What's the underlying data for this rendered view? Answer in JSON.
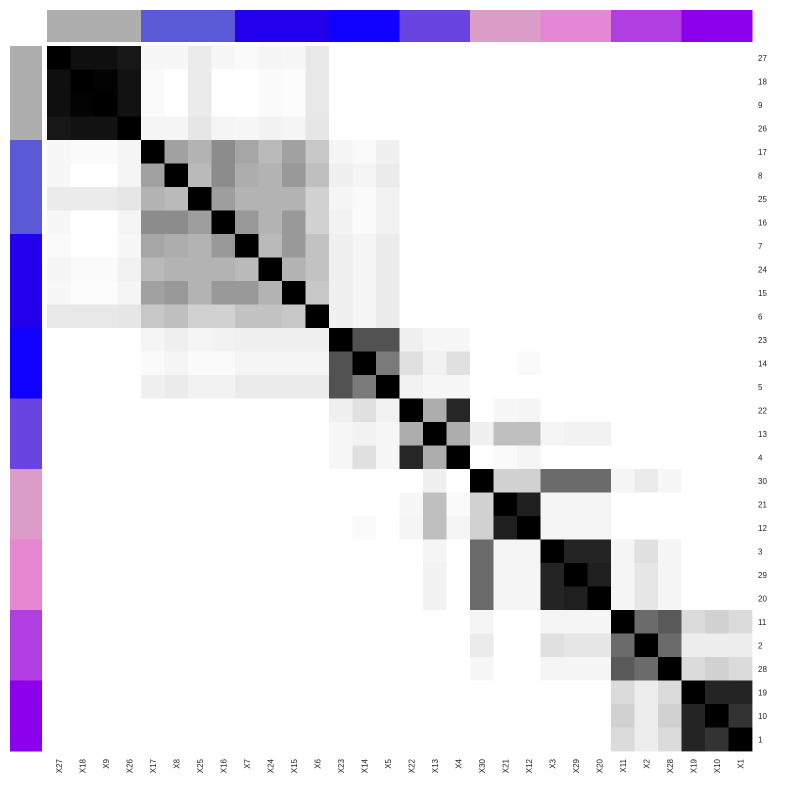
{
  "chart_data": {
    "type": "heatmap",
    "title": "",
    "xlabel": "",
    "ylabel": "",
    "legend": "none",
    "scale": "white-to-black (higher = darker)",
    "value_range": [
      0,
      1
    ],
    "col_labels": [
      "X27",
      "X18",
      "X9",
      "X26",
      "X17",
      "X8",
      "X25",
      "X16",
      "X7",
      "X24",
      "X15",
      "X6",
      "X23",
      "X14",
      "X5",
      "X22",
      "X13",
      "X4",
      "X30",
      "X21",
      "X12",
      "X3",
      "X29",
      "X20",
      "X11",
      "X2",
      "X28",
      "X19",
      "X10",
      "X1"
    ],
    "row_labels": [
      "27",
      "18",
      "9",
      "26",
      "17",
      "8",
      "25",
      "16",
      "7",
      "24",
      "15",
      "6",
      "23",
      "14",
      "5",
      "22",
      "13",
      "4",
      "30",
      "21",
      "12",
      "3",
      "29",
      "20",
      "11",
      "2",
      "28",
      "19",
      "10",
      "1"
    ],
    "group_sizes": [
      4,
      4,
      4,
      3,
      3,
      3,
      3,
      3,
      3
    ],
    "group_colors": [
      "#aeaeae",
      "#5a5ad6",
      "#2200ee",
      "#0f00ff",
      "#6a44e0",
      "#dc9cc8",
      "#e488d4",
      "#b13ee0",
      "#8c00ee"
    ],
    "matrix": [
      [
        1.0,
        0.94,
        0.94,
        0.91,
        0.03,
        0.03,
        0.08,
        0.03,
        0.02,
        0.04,
        0.03,
        0.09,
        0,
        0,
        0,
        0,
        0,
        0,
        0,
        0,
        0,
        0,
        0,
        0,
        0,
        0,
        0,
        0,
        0,
        0
      ],
      [
        0.94,
        1.0,
        0.99,
        0.93,
        0.02,
        0.0,
        0.08,
        0.0,
        0.0,
        0.02,
        0.01,
        0.09,
        0,
        0,
        0,
        0,
        0,
        0,
        0,
        0,
        0,
        0,
        0,
        0,
        0,
        0,
        0,
        0,
        0,
        0
      ],
      [
        0.94,
        0.99,
        1.0,
        0.93,
        0.02,
        0.0,
        0.08,
        0.0,
        0.0,
        0.02,
        0.01,
        0.09,
        0,
        0,
        0,
        0,
        0,
        0,
        0,
        0,
        0,
        0,
        0,
        0,
        0,
        0,
        0,
        0,
        0,
        0
      ],
      [
        0.91,
        0.93,
        0.93,
        1.0,
        0.04,
        0.04,
        0.1,
        0.04,
        0.03,
        0.05,
        0.04,
        0.1,
        0,
        0,
        0,
        0,
        0,
        0,
        0,
        0,
        0,
        0,
        0,
        0,
        0,
        0,
        0,
        0,
        0,
        0
      ],
      [
        0.03,
        0.02,
        0.02,
        0.04,
        1.0,
        0.37,
        0.3,
        0.45,
        0.35,
        0.27,
        0.37,
        0.22,
        0.04,
        0.02,
        0.06,
        0,
        0,
        0,
        0,
        0,
        0,
        0,
        0,
        0,
        0,
        0,
        0,
        0,
        0,
        0
      ],
      [
        0.03,
        0.0,
        0.0,
        0.04,
        0.37,
        1.0,
        0.27,
        0.45,
        0.32,
        0.3,
        0.4,
        0.25,
        0.06,
        0.04,
        0.08,
        0,
        0,
        0,
        0,
        0,
        0,
        0,
        0,
        0,
        0,
        0,
        0,
        0,
        0,
        0
      ],
      [
        0.08,
        0.08,
        0.08,
        0.1,
        0.3,
        0.27,
        1.0,
        0.38,
        0.3,
        0.3,
        0.3,
        0.18,
        0.04,
        0.02,
        0.05,
        0,
        0,
        0,
        0,
        0,
        0,
        0,
        0,
        0,
        0,
        0,
        0,
        0,
        0,
        0
      ],
      [
        0.03,
        0.0,
        0.0,
        0.04,
        0.45,
        0.45,
        0.38,
        1.0,
        0.4,
        0.3,
        0.4,
        0.18,
        0.05,
        0.02,
        0.05,
        0,
        0,
        0,
        0,
        0,
        0,
        0,
        0,
        0,
        0,
        0,
        0,
        0,
        0,
        0
      ],
      [
        0.02,
        0.0,
        0.0,
        0.03,
        0.35,
        0.32,
        0.3,
        0.4,
        1.0,
        0.27,
        0.4,
        0.24,
        0.06,
        0.04,
        0.08,
        0,
        0,
        0,
        0,
        0,
        0,
        0,
        0,
        0,
        0,
        0,
        0,
        0,
        0,
        0
      ],
      [
        0.04,
        0.02,
        0.02,
        0.05,
        0.27,
        0.3,
        0.3,
        0.3,
        0.27,
        1.0,
        0.3,
        0.24,
        0.06,
        0.04,
        0.08,
        0,
        0,
        0,
        0,
        0,
        0,
        0,
        0,
        0,
        0,
        0,
        0,
        0,
        0,
        0
      ],
      [
        0.03,
        0.01,
        0.01,
        0.04,
        0.37,
        0.4,
        0.3,
        0.4,
        0.4,
        0.3,
        1.0,
        0.22,
        0.06,
        0.04,
        0.08,
        0,
        0,
        0,
        0,
        0,
        0,
        0,
        0,
        0,
        0,
        0,
        0,
        0,
        0,
        0
      ],
      [
        0.09,
        0.09,
        0.09,
        0.1,
        0.22,
        0.25,
        0.18,
        0.18,
        0.24,
        0.24,
        0.22,
        1.0,
        0.06,
        0.04,
        0.08,
        0,
        0,
        0,
        0,
        0,
        0,
        0,
        0,
        0,
        0,
        0,
        0,
        0,
        0,
        0
      ],
      [
        0,
        0,
        0,
        0,
        0.04,
        0.06,
        0.04,
        0.05,
        0.06,
        0.06,
        0.06,
        0.06,
        1.0,
        0.68,
        0.68,
        0.06,
        0.03,
        0.03,
        0,
        0,
        0,
        0,
        0,
        0,
        0,
        0,
        0,
        0,
        0,
        0
      ],
      [
        0,
        0,
        0,
        0,
        0.02,
        0.04,
        0.02,
        0.02,
        0.04,
        0.04,
        0.04,
        0.04,
        0.68,
        1.0,
        0.52,
        0.12,
        0.05,
        0.12,
        0,
        0,
        0.02,
        0,
        0,
        0,
        0,
        0,
        0,
        0,
        0,
        0
      ],
      [
        0,
        0,
        0,
        0,
        0.06,
        0.08,
        0.05,
        0.05,
        0.08,
        0.08,
        0.08,
        0.08,
        0.68,
        0.52,
        1.0,
        0.05,
        0.03,
        0.03,
        0,
        0,
        0,
        0,
        0,
        0,
        0,
        0,
        0,
        0,
        0,
        0
      ],
      [
        0,
        0,
        0,
        0,
        0,
        0,
        0,
        0,
        0,
        0,
        0,
        0,
        0.06,
        0.12,
        0.05,
        1.0,
        0.32,
        0.85,
        0,
        0.03,
        0.04,
        0,
        0,
        0,
        0,
        0,
        0,
        0,
        0,
        0
      ],
      [
        0,
        0,
        0,
        0,
        0,
        0,
        0,
        0,
        0,
        0,
        0,
        0,
        0.03,
        0.05,
        0.03,
        0.32,
        1.0,
        0.32,
        0.06,
        0.25,
        0.25,
        0.04,
        0.05,
        0.05,
        0,
        0,
        0,
        0,
        0,
        0
      ],
      [
        0,
        0,
        0,
        0,
        0,
        0,
        0,
        0,
        0,
        0,
        0,
        0,
        0.03,
        0.12,
        0.03,
        0.85,
        0.32,
        1.0,
        0,
        0.02,
        0.04,
        0,
        0,
        0,
        0,
        0,
        0,
        0,
        0,
        0
      ],
      [
        0,
        0,
        0,
        0,
        0,
        0,
        0,
        0,
        0,
        0,
        0,
        0,
        0,
        0,
        0,
        0,
        0.06,
        0,
        1.0,
        0.18,
        0.18,
        0.58,
        0.58,
        0.58,
        0.04,
        0.08,
        0.03,
        0,
        0,
        0
      ],
      [
        0,
        0,
        0,
        0,
        0,
        0,
        0,
        0,
        0,
        0,
        0,
        0,
        0,
        0,
        0,
        0.03,
        0.25,
        0.02,
        0.18,
        1.0,
        0.88,
        0.04,
        0.04,
        0.04,
        0,
        0,
        0,
        0,
        0,
        0
      ],
      [
        0,
        0,
        0,
        0,
        0,
        0,
        0,
        0,
        0,
        0,
        0,
        0,
        0,
        0.02,
        0,
        0.04,
        0.25,
        0.04,
        0.18,
        0.88,
        1.0,
        0.04,
        0.04,
        0.04,
        0,
        0,
        0,
        0,
        0,
        0
      ],
      [
        0,
        0,
        0,
        0,
        0,
        0,
        0,
        0,
        0,
        0,
        0,
        0,
        0,
        0,
        0,
        0,
        0.04,
        0,
        0.58,
        0.04,
        0.04,
        1.0,
        0.86,
        0.86,
        0.04,
        0.12,
        0.04,
        0,
        0,
        0
      ],
      [
        0,
        0,
        0,
        0,
        0,
        0,
        0,
        0,
        0,
        0,
        0,
        0,
        0,
        0,
        0,
        0,
        0.05,
        0,
        0.58,
        0.04,
        0.04,
        0.86,
        1.0,
        0.88,
        0.04,
        0.1,
        0.04,
        0,
        0,
        0
      ],
      [
        0,
        0,
        0,
        0,
        0,
        0,
        0,
        0,
        0,
        0,
        0,
        0,
        0,
        0,
        0,
        0,
        0.05,
        0,
        0.58,
        0.04,
        0.04,
        0.86,
        0.88,
        1.0,
        0.04,
        0.1,
        0.04,
        0,
        0,
        0
      ],
      [
        0,
        0,
        0,
        0,
        0,
        0,
        0,
        0,
        0,
        0,
        0,
        0,
        0,
        0,
        0,
        0,
        0,
        0,
        0.04,
        0,
        0,
        0.04,
        0.04,
        0.04,
        1.0,
        0.58,
        0.65,
        0.14,
        0.18,
        0.14
      ],
      [
        0,
        0,
        0,
        0,
        0,
        0,
        0,
        0,
        0,
        0,
        0,
        0,
        0,
        0,
        0,
        0,
        0,
        0,
        0.08,
        0,
        0,
        0.12,
        0.1,
        0.1,
        0.58,
        1.0,
        0.58,
        0.07,
        0.07,
        0.07
      ],
      [
        0,
        0,
        0,
        0,
        0,
        0,
        0,
        0,
        0,
        0,
        0,
        0,
        0,
        0,
        0,
        0,
        0,
        0,
        0.03,
        0,
        0,
        0.04,
        0.04,
        0.04,
        0.65,
        0.58,
        1.0,
        0.14,
        0.18,
        0.14
      ],
      [
        0,
        0,
        0,
        0,
        0,
        0,
        0,
        0,
        0,
        0,
        0,
        0,
        0,
        0,
        0,
        0,
        0,
        0,
        0,
        0,
        0,
        0,
        0,
        0,
        0.14,
        0.07,
        0.14,
        1.0,
        0.86,
        0.86
      ],
      [
        0,
        0,
        0,
        0,
        0,
        0,
        0,
        0,
        0,
        0,
        0,
        0,
        0,
        0,
        0,
        0,
        0,
        0,
        0,
        0,
        0,
        0,
        0,
        0,
        0.18,
        0.07,
        0.18,
        0.86,
        1.0,
        0.8
      ],
      [
        0,
        0,
        0,
        0,
        0,
        0,
        0,
        0,
        0,
        0,
        0,
        0,
        0,
        0,
        0,
        0,
        0,
        0,
        0,
        0,
        0,
        0,
        0,
        0,
        0.14,
        0.07,
        0.14,
        0.86,
        0.8,
        1.0
      ]
    ]
  }
}
